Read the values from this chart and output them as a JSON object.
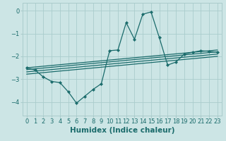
{
  "title": "",
  "xlabel": "Humidex (Indice chaleur)",
  "background_color": "#cce5e5",
  "grid_color": "#aacccc",
  "line_color": "#1a6b6b",
  "xlim": [
    -0.5,
    23.5
  ],
  "ylim": [
    -4.6,
    0.35
  ],
  "yticks": [
    0,
    -1,
    -2,
    -3,
    -4
  ],
  "xticks": [
    0,
    1,
    2,
    3,
    4,
    5,
    6,
    7,
    8,
    9,
    10,
    11,
    12,
    13,
    14,
    15,
    16,
    17,
    18,
    19,
    20,
    21,
    22,
    23
  ],
  "main_x": [
    0,
    1,
    2,
    3,
    4,
    5,
    6,
    7,
    8,
    9,
    10,
    11,
    12,
    13,
    14,
    15,
    16,
    17,
    18,
    19,
    20,
    21,
    22,
    23
  ],
  "main_y": [
    -2.5,
    -2.6,
    -2.9,
    -3.1,
    -3.15,
    -3.55,
    -4.05,
    -3.75,
    -3.45,
    -3.2,
    -1.75,
    -1.72,
    -0.52,
    -1.25,
    -0.15,
    -0.05,
    -1.18,
    -2.38,
    -2.25,
    -1.9,
    -1.82,
    -1.75,
    -1.78,
    -1.82
  ],
  "reg_lines": [
    {
      "x": [
        0,
        23
      ],
      "y": [
        -2.5,
        -1.72
      ]
    },
    {
      "x": [
        0,
        23
      ],
      "y": [
        -2.58,
        -1.8
      ]
    },
    {
      "x": [
        0,
        23
      ],
      "y": [
        -2.68,
        -1.9
      ]
    },
    {
      "x": [
        0,
        23
      ],
      "y": [
        -2.78,
        -2.0
      ]
    }
  ],
  "tick_fontsize": 6.0,
  "label_fontsize": 7.5,
  "label_fontweight": "bold"
}
